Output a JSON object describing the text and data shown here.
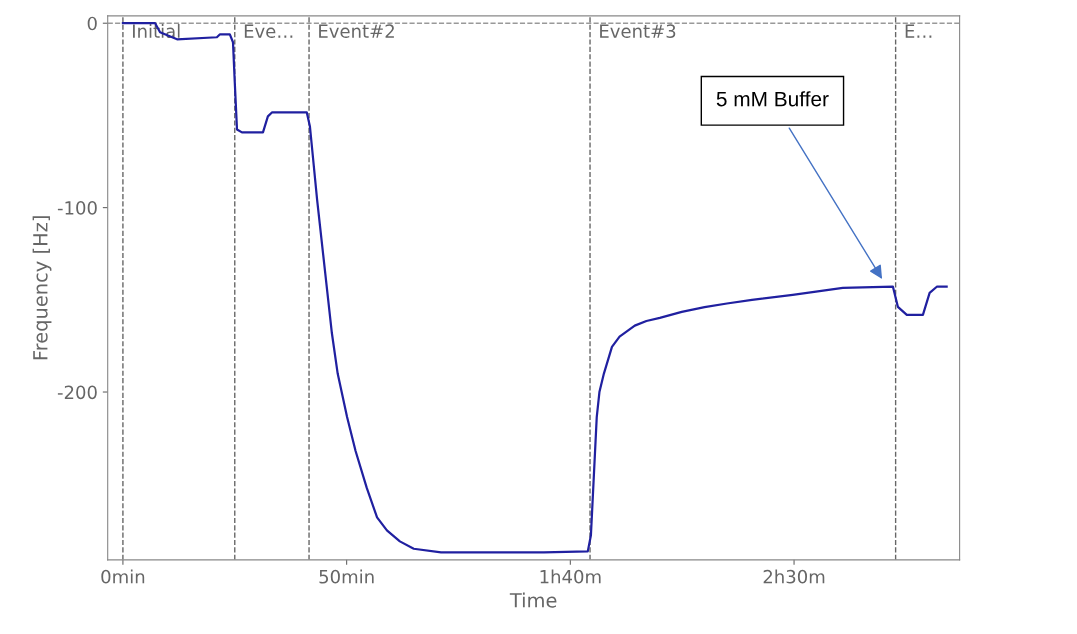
{
  "chart_data": {
    "type": "line",
    "xlabel": "Time",
    "ylabel": "Frequency [Hz]",
    "xlim": [
      -3.4,
      187
    ],
    "ylim": [
      -291,
      4
    ],
    "xticks": [
      {
        "value": 0,
        "label": "0min"
      },
      {
        "value": 50,
        "label": "50min"
      },
      {
        "value": 100,
        "label": "1h40m"
      },
      {
        "value": 150,
        "label": "2h30m"
      }
    ],
    "yticks": [
      0,
      -100,
      -200
    ],
    "grid": false,
    "legend": false,
    "marker": "none",
    "line_style": "solid",
    "series": [
      {
        "color": "#2020a0",
        "x": [
          0,
          4.5,
          7.2,
          8.3,
          12.1,
          21.0,
          21.7,
          23.9,
          24.6,
          25.0,
          25.5,
          26.6,
          31.3,
          32.4,
          33.3,
          41.1,
          41.8,
          43.4,
          46.7,
          48,
          50.1,
          52,
          54.5,
          56.8,
          59,
          61.9,
          65,
          71.1,
          94.1,
          103.9,
          104.6,
          105.9,
          106.5,
          107.5,
          109.3,
          111,
          114.4,
          117,
          120.0,
          124.9,
          130,
          135,
          140.6,
          149.7,
          160.9,
          172.1,
          173.2,
          175.2,
          178.8,
          180.3,
          181.9,
          184.1
        ],
        "values": [
          0,
          0,
          0,
          -4.9,
          -8.7,
          -7.6,
          -6.0,
          -6.0,
          -10.3,
          -32,
          -57.6,
          -59.2,
          -59.2,
          -50.5,
          -48.4,
          -48.4,
          -56,
          -95.7,
          -168,
          -190,
          -213.6,
          -232,
          -252,
          -268,
          -275,
          -281,
          -285,
          -287,
          -287,
          -286.4,
          -277.7,
          -213.6,
          -200,
          -190,
          -175.5,
          -170,
          -164,
          -161.5,
          -159.8,
          -156.5,
          -154,
          -152,
          -150,
          -147.3,
          -143.5,
          -142.9,
          -153.8,
          -158.2,
          -158.2,
          -146.2,
          -142.9,
          -142.9
        ]
      }
    ],
    "ref_lines": [
      {
        "axis": "y",
        "value": 0,
        "color": "#999999",
        "line_style": "dashed"
      },
      {
        "axis": "x",
        "value": 0,
        "label": "Initial",
        "color": "#666666",
        "line_style": "dashed"
      },
      {
        "axis": "x",
        "value": 25.0,
        "label": "Eve…",
        "color": "#666666",
        "line_style": "dashed"
      },
      {
        "axis": "x",
        "value": 41.6,
        "label": "Event#2",
        "color": "#666666",
        "line_style": "dashed"
      },
      {
        "axis": "x",
        "value": 104.4,
        "label": "Event#3",
        "color": "#666666",
        "line_style": "dashed"
      },
      {
        "axis": "x",
        "value": 172.7,
        "label": "E…",
        "color": "#666666",
        "line_style": "dashed"
      }
    ],
    "annotations": [
      {
        "text": "5 mM Buffer",
        "x": 170,
        "y": -140
      }
    ]
  }
}
